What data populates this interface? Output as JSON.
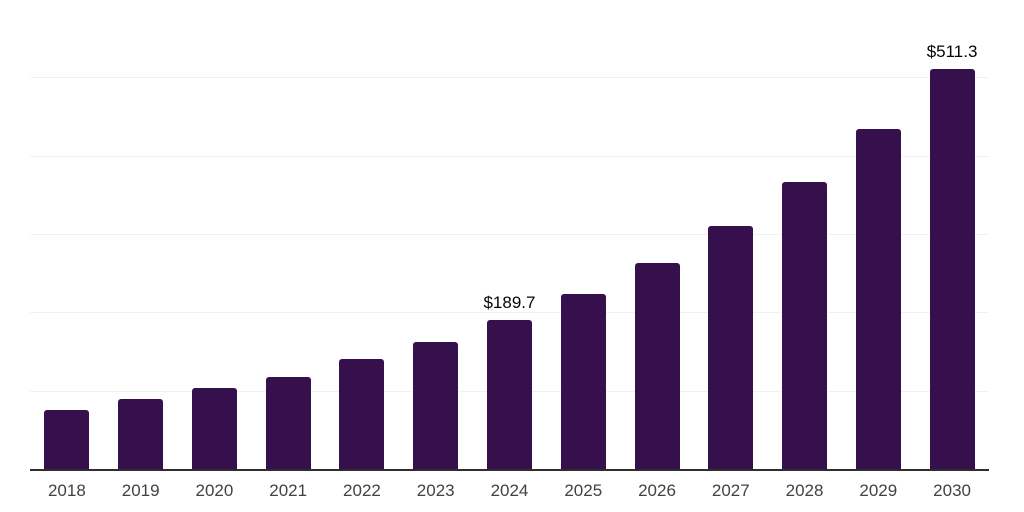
{
  "chart_data": {
    "type": "bar",
    "title": "",
    "xlabel": "",
    "ylabel": "",
    "categories": [
      "2018",
      "2019",
      "2020",
      "2021",
      "2022",
      "2023",
      "2024",
      "2025",
      "2026",
      "2027",
      "2028",
      "2029",
      "2030"
    ],
    "values": [
      75.0,
      89.3,
      103.2,
      117.5,
      140.4,
      162.1,
      189.7,
      223.5,
      263.0,
      309.9,
      366.9,
      433.9,
      511.3
    ],
    "data_labels": [
      "",
      "",
      "",
      "",
      "",
      "",
      "$189.7",
      "",
      "",
      "",
      "",
      "",
      "$511.3"
    ],
    "ylim": [
      0,
      600
    ],
    "gridline_values": [
      100,
      200,
      300,
      400,
      500,
      600
    ],
    "grid": "horizontal-only",
    "legend_position": "none",
    "y_axis_tick_labels_visible": false,
    "colors": {
      "bar": "#35104C",
      "axis_line": "#2E2E2E",
      "gridline": "#F1F1F1",
      "tick_label": "#424242",
      "value_label": "#050505"
    }
  }
}
